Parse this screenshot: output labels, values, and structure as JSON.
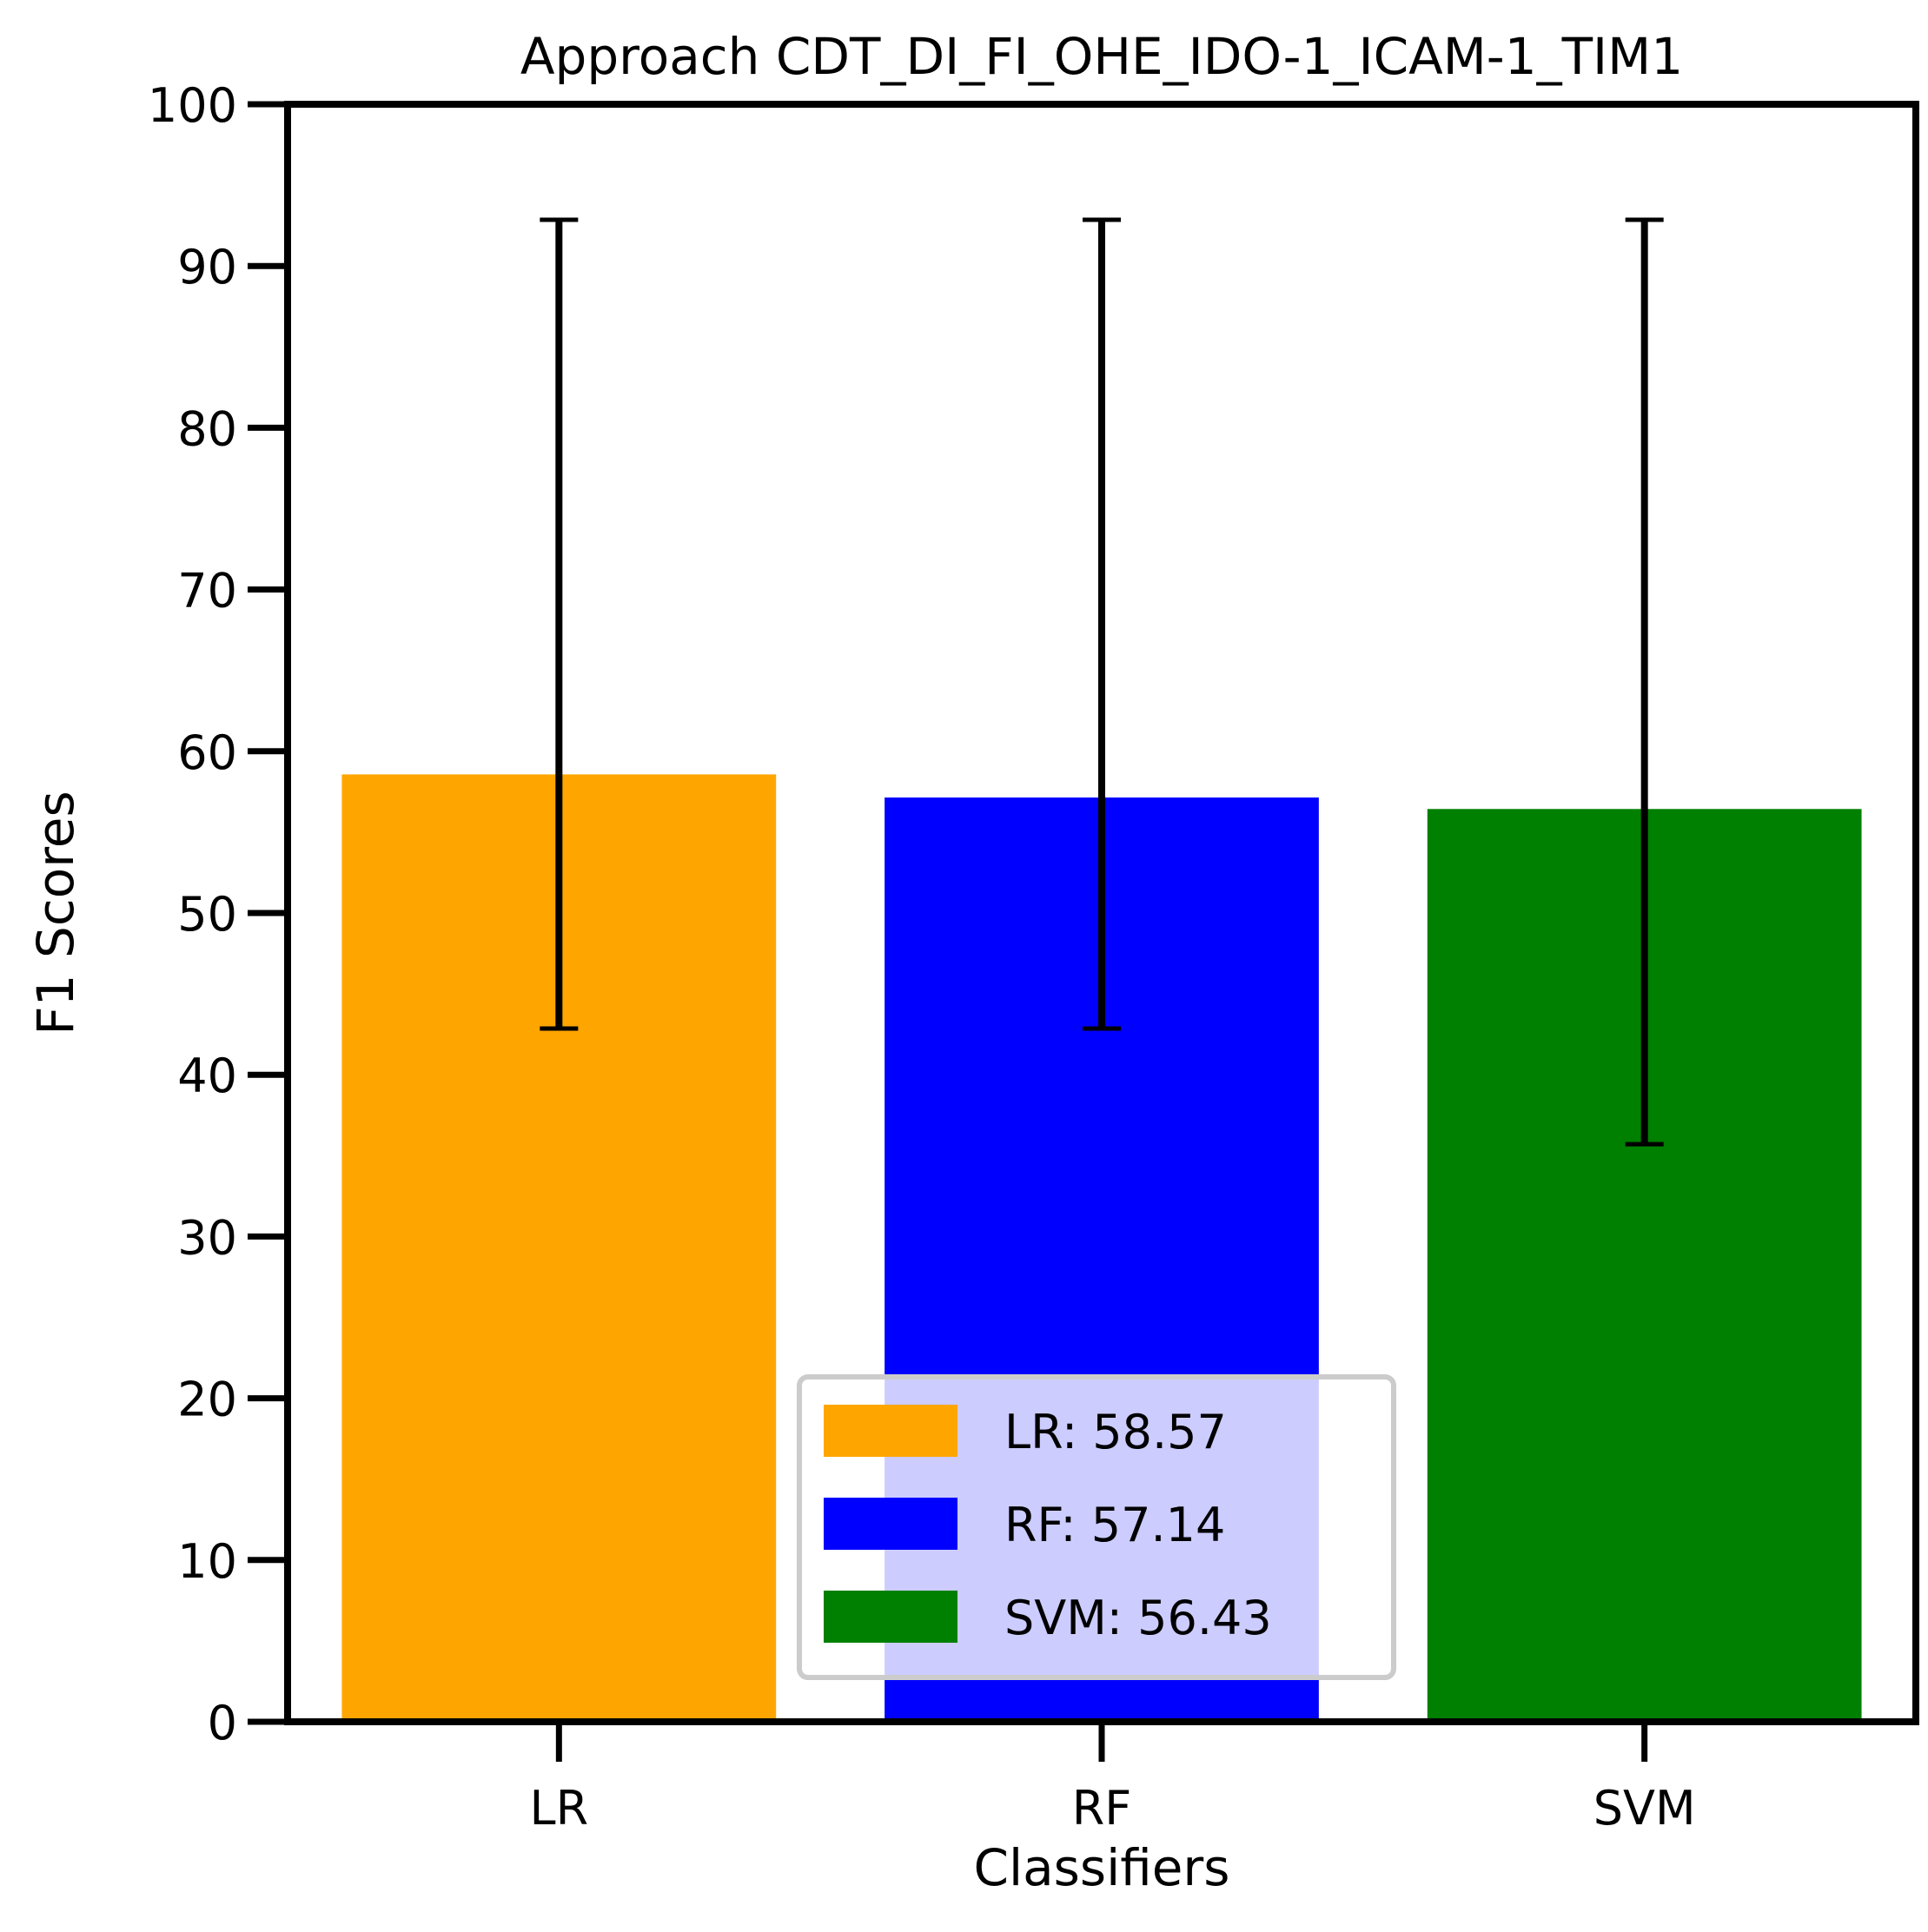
{
  "chart_data": {
    "type": "bar",
    "title": "Approach CDT_DI_FI_OHE_IDO-1_ICAM-1_TIM1",
    "xlabel": "Classifiers",
    "ylabel": "F1 Scores",
    "ylim": [
      0,
      100
    ],
    "yticks": [
      0,
      10,
      20,
      30,
      40,
      50,
      60,
      70,
      80,
      90,
      100
    ],
    "categories": [
      "LR",
      "RF",
      "SVM"
    ],
    "values": [
      58.57,
      57.14,
      56.43
    ],
    "error_low": [
      42.86,
      42.86,
      35.71
    ],
    "error_high": [
      92.86,
      92.86,
      92.86
    ],
    "colors": [
      "#ffa500",
      "#0000ff",
      "#008000"
    ],
    "grid": false,
    "legend": {
      "placement": "lower-center",
      "entries": [
        "LR: 58.57",
        "RF: 57.14",
        "SVM: 56.43"
      ]
    }
  }
}
